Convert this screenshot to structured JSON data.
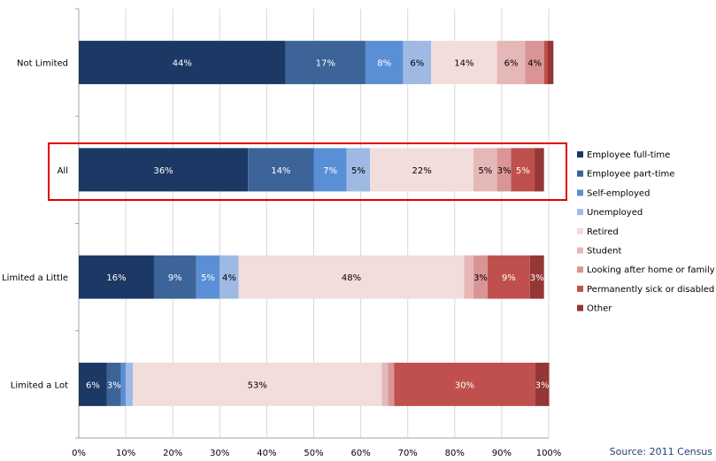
{
  "chart_data": {
    "type": "bar",
    "orientation": "horizontal",
    "stacked": "percent",
    "categories": [
      "Not Limited",
      "All",
      "Limited a Little",
      "Limited a Lot"
    ],
    "series": [
      {
        "name": "Employee full-time",
        "color": "#1c3864",
        "values": [
          44,
          36,
          16,
          6
        ],
        "labels": [
          "44%",
          "36%",
          "16%",
          "6%"
        ]
      },
      {
        "name": "Employee part-time",
        "color": "#3c6499",
        "values": [
          17,
          14,
          9,
          3
        ],
        "labels": [
          "17%",
          "14%",
          "9%",
          "3%"
        ]
      },
      {
        "name": "Self-employed",
        "color": "#5a8fd6",
        "values": [
          8,
          7,
          5,
          1
        ],
        "labels": [
          "8%",
          "7%",
          "5%",
          ""
        ]
      },
      {
        "name": "Unemployed",
        "color": "#9ebae3",
        "values": [
          6,
          5,
          4,
          1.5
        ],
        "labels": [
          "6%",
          "5%",
          "4%",
          ""
        ]
      },
      {
        "name": "Retired",
        "color": "#f2dcdc",
        "values": [
          14,
          22,
          48,
          53
        ],
        "labels": [
          "14%",
          "22%",
          "48%",
          "53%"
        ]
      },
      {
        "name": "Student",
        "color": "#e6b7b7",
        "values": [
          6,
          5,
          2,
          1.3
        ],
        "labels": [
          "6%",
          "5%",
          "",
          ""
        ]
      },
      {
        "name": "Looking after home or family",
        "color": "#d99595",
        "values": [
          4,
          3,
          3,
          1.3
        ],
        "labels": [
          "4%",
          "3%",
          "3%",
          ""
        ]
      },
      {
        "name": "Permanently sick or disabled",
        "color": "#c0504d",
        "values": [
          0.7,
          5,
          9,
          30
        ],
        "labels": [
          "",
          "5%",
          "9%",
          "30%"
        ]
      },
      {
        "name": "Other",
        "color": "#953735",
        "values": [
          1.3,
          2,
          3,
          3
        ],
        "labels": [
          "",
          "",
          "3%",
          "3%"
        ]
      }
    ],
    "x_ticks": [
      "0%",
      "10%",
      "20%",
      "30%",
      "40%",
      "50%",
      "60%",
      "70%",
      "80%",
      "90%",
      "100%"
    ],
    "xlim": [
      0,
      100
    ],
    "grid": "vertical",
    "legend_position": "right",
    "highlighted_category": "All"
  },
  "source_text": "Source: 2011 Census"
}
